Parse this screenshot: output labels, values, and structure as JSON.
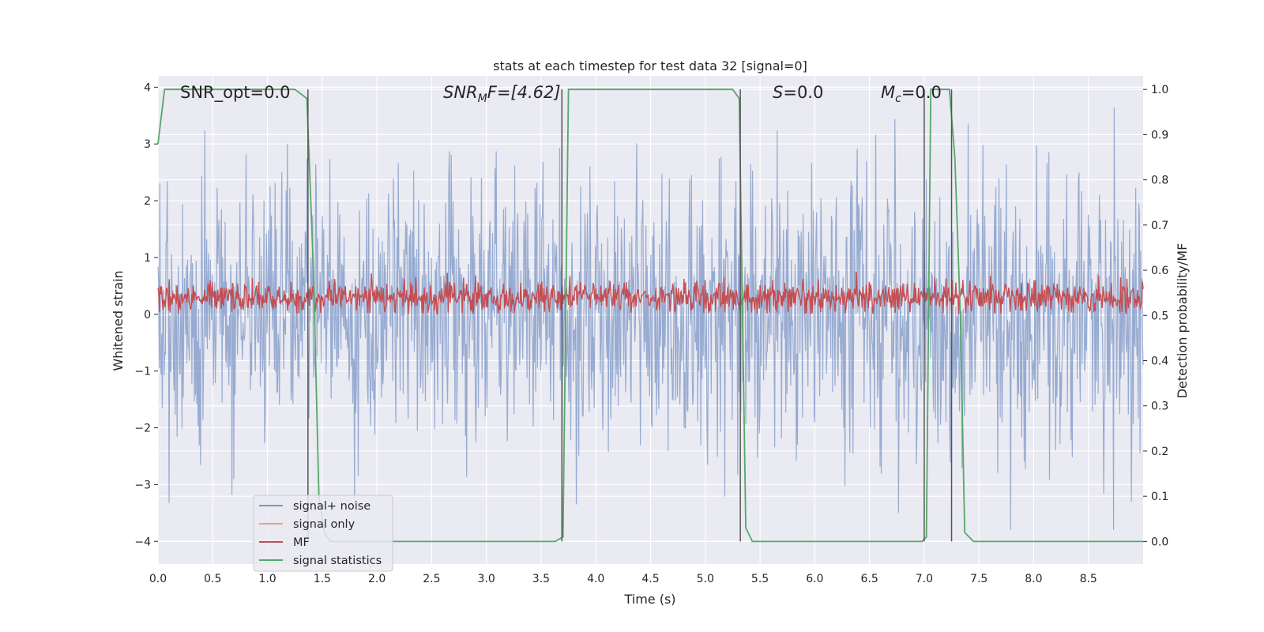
{
  "chart_data": {
    "type": "line",
    "title": "stats at each timestep for test data 32 [signal=0]",
    "xlabel": "Time (s)",
    "ylabel_left": "Whitened strain",
    "ylabel_right": "Detection probability/MF",
    "xlim": [
      0,
      9
    ],
    "ylim_left": [
      -4.4,
      4.2
    ],
    "ylim_right": [
      -0.05,
      1.03
    ],
    "x_ticks": [
      "0.0",
      "0.5",
      "1.0",
      "1.5",
      "2.0",
      "2.5",
      "3.0",
      "3.5",
      "4.0",
      "4.5",
      "5.0",
      "5.5",
      "6.0",
      "6.5",
      "7.0",
      "7.5",
      "8.0",
      "8.5"
    ],
    "y_ticks_left": [
      "4",
      "3",
      "2",
      "1",
      "0",
      "−1",
      "−2",
      "−3",
      "−4"
    ],
    "y_ticks_right": [
      "1.0",
      "0.9",
      "0.8",
      "0.7",
      "0.6",
      "0.5",
      "0.4",
      "0.3",
      "0.2",
      "0.1",
      "0.0"
    ],
    "grid": true,
    "legend_position": "lower-left",
    "annotations": {
      "snr_opt": "SNR_opt=0.0",
      "snr_mf_main": "SNR",
      "snr_mf_sub": "M",
      "snr_mf_rest": "F=[4.62]",
      "s_main": "S",
      "s_rest": "=0.0",
      "mc_main": "M",
      "mc_sub": "c",
      "mc_rest": "=0.0"
    },
    "series": [
      {
        "name": "signal+ noise",
        "axis": "left",
        "color": "#7b95c6",
        "kind": "noise",
        "amplitude_std": 1.2,
        "peak_abs": 3.8
      },
      {
        "name": "signal only",
        "axis": "left",
        "color": "#e8a488",
        "values": []
      },
      {
        "name": "MF",
        "axis": "left",
        "color": "#c44e52",
        "kind": "noise",
        "mean": 0.3,
        "range": [
          0.0,
          1.0
        ]
      },
      {
        "name": "signal statistics",
        "axis": "right",
        "color": "#55a868",
        "x": [
          0.0,
          0.06,
          1.25,
          1.36,
          1.42,
          1.47,
          1.52,
          1.57,
          3.63,
          3.7,
          3.75,
          5.25,
          5.31,
          5.37,
          5.43,
          6.98,
          7.02,
          7.06,
          7.23,
          7.28,
          7.33,
          7.37,
          7.45,
          9.0
        ],
        "y": [
          0.88,
          1.0,
          1.0,
          0.98,
          0.6,
          0.1,
          0.02,
          0.0,
          0.0,
          0.01,
          1.0,
          1.0,
          0.98,
          0.03,
          0.0,
          0.0,
          0.01,
          1.0,
          1.0,
          0.85,
          0.5,
          0.02,
          0.0,
          0.0
        ]
      }
    ],
    "vertical_markers": {
      "color": "#555555",
      "x": [
        1.37,
        3.69,
        5.32,
        7.0,
        7.25
      ]
    }
  }
}
